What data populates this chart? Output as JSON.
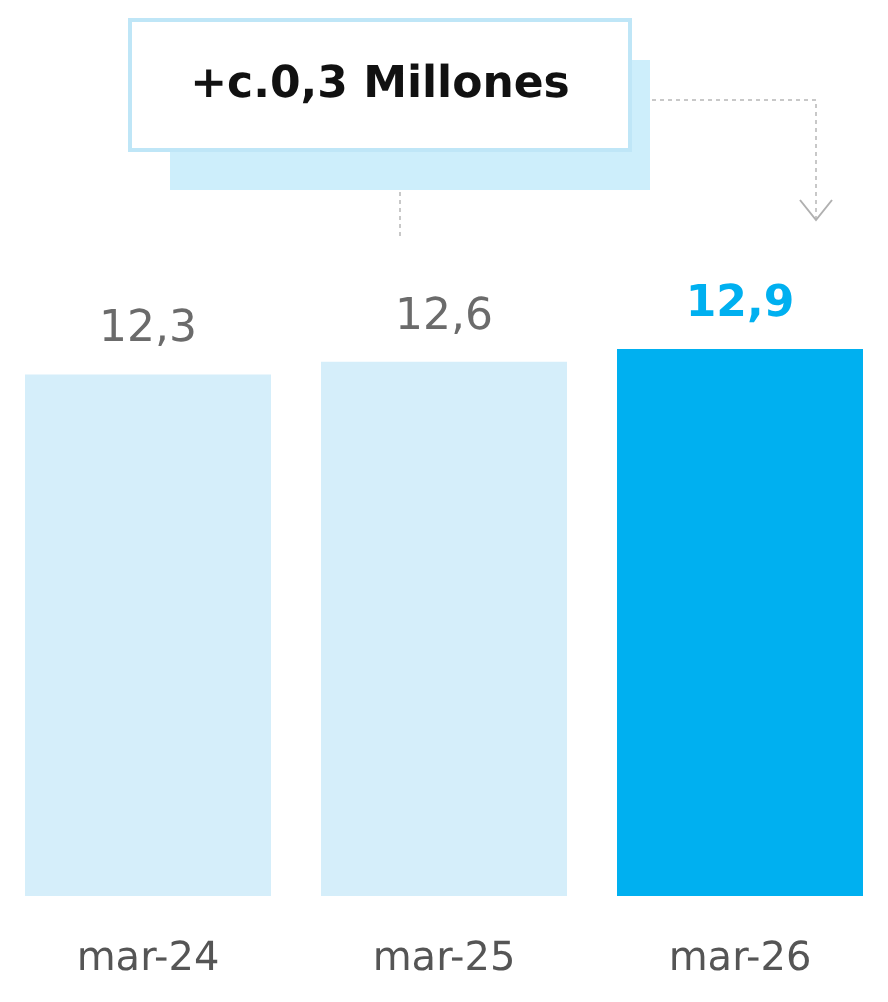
{
  "chart_data": {
    "type": "bar",
    "categories": [
      "mar-24",
      "mar-25",
      "mar-26"
    ],
    "values": [
      12.3,
      12.6,
      12.9
    ],
    "value_labels": [
      "12,3",
      "12,6",
      "12,9"
    ],
    "colors": [
      "#d5eefa",
      "#d5eefa",
      "#00b0f0"
    ],
    "tick_labels": "x",
    "annotations": [
      "+c.0,3 Millones"
    ]
  }
}
